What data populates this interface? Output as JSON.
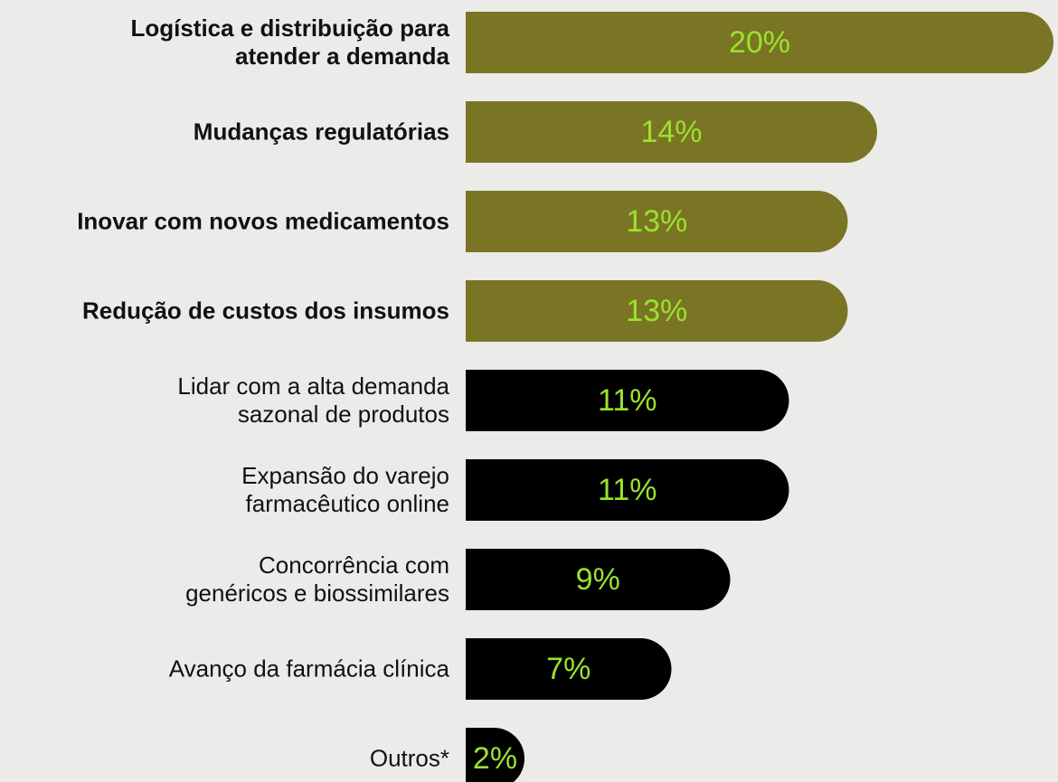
{
  "chart_data": {
    "type": "bar",
    "orientation": "horizontal",
    "categories": [
      "Logística e distribuição para\natender a demanda",
      "Mudanças regulatórias",
      "Inovar com novos medicamentos",
      "Redução de custos dos insumos",
      "Lidar com a alta demanda\nsazonal de produtos",
      "Expansão do varejo\nfarmacêutico online",
      "Concorrência com\ngenéricos e biossimilares",
      "Avanço da farmácia clínica",
      "Outros*"
    ],
    "values": [
      20,
      14,
      13,
      13,
      11,
      11,
      9,
      7,
      2
    ],
    "value_labels": [
      "20%",
      "14%",
      "13%",
      "13%",
      "11%",
      "11%",
      "9%",
      "7%",
      "2%"
    ],
    "colors": [
      "#7a7425",
      "#7a7425",
      "#7a7425",
      "#7a7425",
      "#000000",
      "#000000",
      "#000000",
      "#000000",
      "#000000"
    ],
    "label_weights": [
      "bold",
      "bold",
      "bold",
      "bold",
      "normal",
      "normal",
      "normal",
      "normal",
      "normal"
    ],
    "value_label_color": "#9be22d",
    "background": "#ebebe9"
  }
}
